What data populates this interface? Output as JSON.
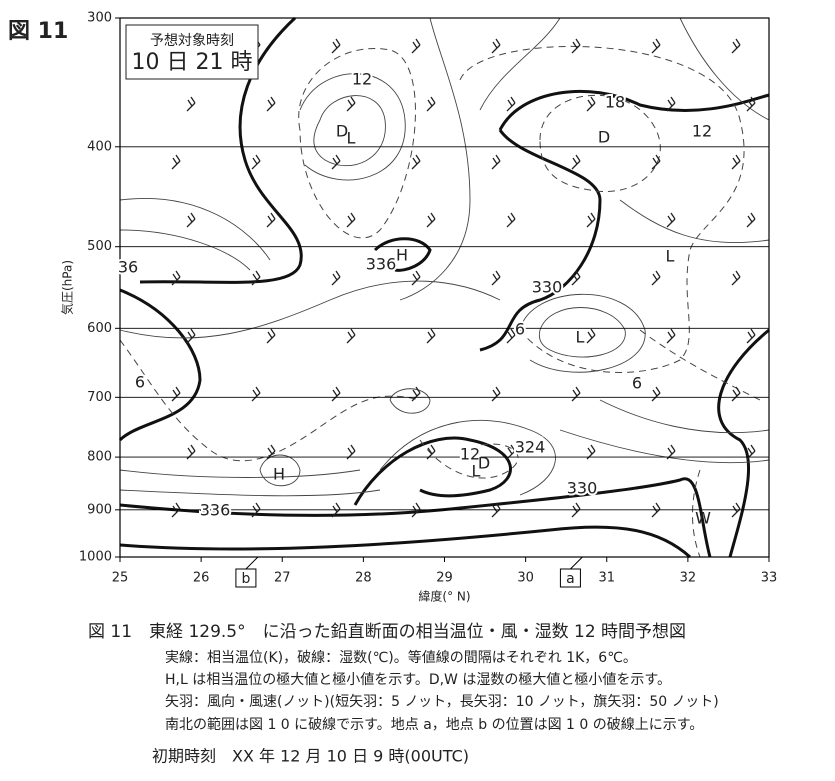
{
  "figure_label": "図 11",
  "inset": {
    "title": "予想対象時刻",
    "time": "10 日 21 時"
  },
  "chart_data": {
    "type": "cross-section",
    "xlabel": "緯度(° N)",
    "ylabel": "気圧(hPa)",
    "xlim": [
      25,
      33
    ],
    "xticks": [
      25,
      26,
      27,
      28,
      29,
      30,
      31,
      32,
      33
    ],
    "ylim": [
      1000,
      300
    ],
    "yticks": [
      300,
      400,
      500,
      600,
      700,
      800,
      900,
      1000
    ],
    "ylog": true,
    "grid": true,
    "points": [
      {
        "label": "a",
        "x": 30.7
      },
      {
        "label": "b",
        "x": 26.7
      }
    ],
    "contour_labels": [
      12,
      18,
      12,
      336,
      36,
      330,
      6,
      6,
      6,
      12,
      324,
      330,
      336
    ],
    "extrema": [
      "D",
      "L",
      "D",
      "H",
      "L",
      "L",
      "H",
      "D",
      "L",
      "W"
    ]
  },
  "caption": {
    "title": "図 11　東経 129.5°　に沿った鉛直断面の相当温位・風・湿数 12 時間予想図",
    "lines": [
      "実線：相当温位(K)，破線：湿数(℃)。等値線の間隔はそれぞれ 1K，6℃。",
      "H,L は相当温位の極大値と極小値を示す。D,W は湿数の極大値と極小値を示す。",
      "矢羽：風向・風速(ノット)(短矢羽：5 ノット，長矢羽：10 ノット，旗矢羽：50 ノット)",
      "南北の範囲は図 1 0 に破線で示す。地点 a，地点 b の位置は図 1 0 の破線上に示す。"
    ],
    "init": "初期時刻　XX 年 12 月 10 日 9 時(00UTC)"
  }
}
